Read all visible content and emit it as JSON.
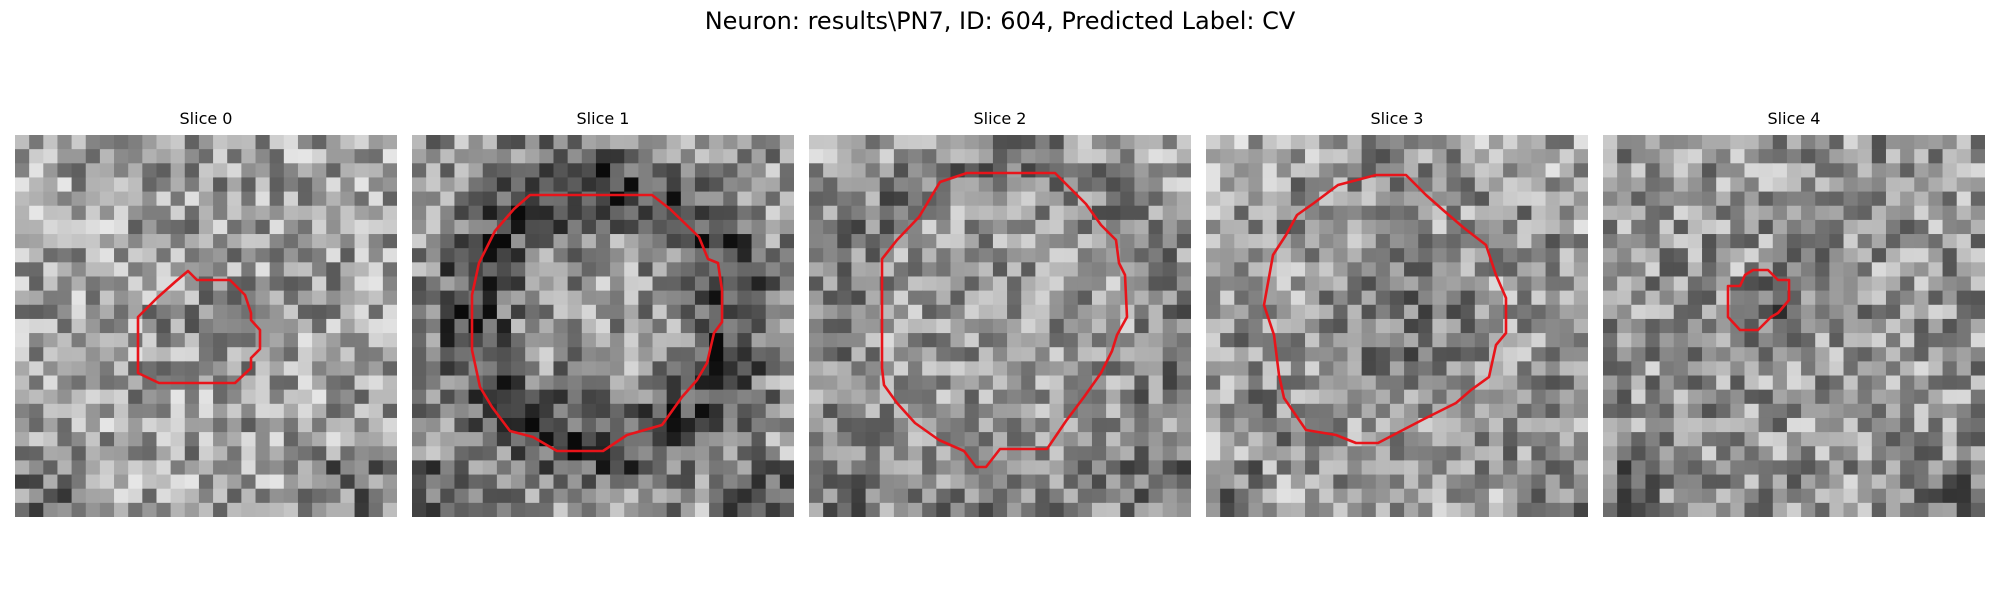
{
  "figure": {
    "title": "Neuron: results\\PN7, ID: 604, Predicted Label: CV"
  },
  "panels": [
    {
      "title": "Slice 0",
      "contour_color": "#e8141a",
      "colormap": "gray"
    },
    {
      "title": "Slice 1",
      "contour_color": "#e8141a",
      "colormap": "gray"
    },
    {
      "title": "Slice 2",
      "contour_color": "#e8141a",
      "colormap": "gray"
    },
    {
      "title": "Slice 3",
      "contour_color": "#e8141a",
      "colormap": "gray"
    },
    {
      "title": "Slice 4",
      "contour_color": "#e8141a",
      "colormap": "gray"
    }
  ]
}
